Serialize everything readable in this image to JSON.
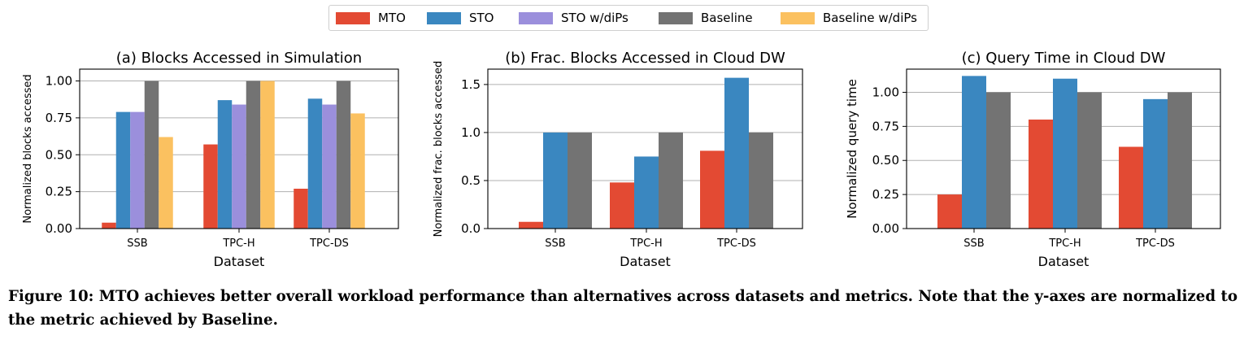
{
  "legend": [
    {
      "label": "MTO",
      "color": "#e34a33"
    },
    {
      "label": "STO",
      "color": "#3a87c0"
    },
    {
      "label": "STO w/diPs",
      "color": "#9b8fdc"
    },
    {
      "label": "Baseline",
      "color": "#737373"
    },
    {
      "label": "Baseline w/diPs",
      "color": "#fbc160"
    }
  ],
  "chart_data": [
    {
      "type": "bar",
      "title": "(a) Blocks Accessed in Simulation",
      "xlabel": "Dataset",
      "ylabel": "Normalized blocks accessed",
      "categories": [
        "SSB",
        "TPC-H",
        "TPC-DS"
      ],
      "ylim": [
        0,
        1.08
      ],
      "yticks": [
        0.0,
        0.25,
        0.5,
        0.75,
        1.0
      ],
      "ytick_labels": [
        "0.00",
        "0.25",
        "0.50",
        "0.75",
        "1.00"
      ],
      "grid": "horizontal",
      "series": [
        {
          "name": "MTO",
          "color": "#e34a33",
          "values": [
            0.04,
            0.57,
            0.27
          ]
        },
        {
          "name": "STO",
          "color": "#3a87c0",
          "values": [
            0.79,
            0.87,
            0.88
          ]
        },
        {
          "name": "STO w/diPs",
          "color": "#9b8fdc",
          "values": [
            0.79,
            0.84,
            0.84
          ]
        },
        {
          "name": "Baseline",
          "color": "#737373",
          "values": [
            1.0,
            1.0,
            1.0
          ]
        },
        {
          "name": "Baseline w/diPs",
          "color": "#fbc160",
          "values": [
            0.62,
            1.0,
            0.78
          ]
        }
      ]
    },
    {
      "type": "bar",
      "title": "(b) Frac. Blocks Accessed in Cloud DW",
      "xlabel": "Dataset",
      "ylabel": "Normalized frac. blocks accessed",
      "categories": [
        "SSB",
        "TPC-H",
        "TPC-DS"
      ],
      "ylim": [
        0,
        1.66
      ],
      "yticks": [
        0.0,
        0.5,
        1.0,
        1.5
      ],
      "ytick_labels": [
        "0.0",
        "0.5",
        "1.0",
        "1.5"
      ],
      "grid": "horizontal",
      "series": [
        {
          "name": "MTO",
          "color": "#e34a33",
          "values": [
            0.07,
            0.48,
            0.81
          ]
        },
        {
          "name": "STO",
          "color": "#3a87c0",
          "values": [
            1.0,
            0.75,
            1.57
          ]
        },
        {
          "name": "Baseline",
          "color": "#737373",
          "values": [
            1.0,
            1.0,
            1.0
          ]
        }
      ]
    },
    {
      "type": "bar",
      "title": "(c) Query Time in Cloud DW",
      "xlabel": "Dataset",
      "ylabel": "Normalized query time",
      "categories": [
        "SSB",
        "TPC-H",
        "TPC-DS"
      ],
      "ylim": [
        0,
        1.17
      ],
      "yticks": [
        0.0,
        0.25,
        0.5,
        0.75,
        1.0
      ],
      "ytick_labels": [
        "0.00",
        "0.25",
        "0.50",
        "0.75",
        "1.00"
      ],
      "grid": "horizontal",
      "series": [
        {
          "name": "MTO",
          "color": "#e34a33",
          "values": [
            0.25,
            0.8,
            0.6
          ]
        },
        {
          "name": "STO",
          "color": "#3a87c0",
          "values": [
            1.12,
            1.1,
            0.95
          ]
        },
        {
          "name": "Baseline",
          "color": "#737373",
          "values": [
            1.0,
            1.0,
            1.0
          ]
        }
      ]
    }
  ],
  "caption": "Figure 10: MTO achieves better overall workload performance than alternatives across datasets and metrics. Note that the y-axes are normalized to the metric achieved by Baseline."
}
